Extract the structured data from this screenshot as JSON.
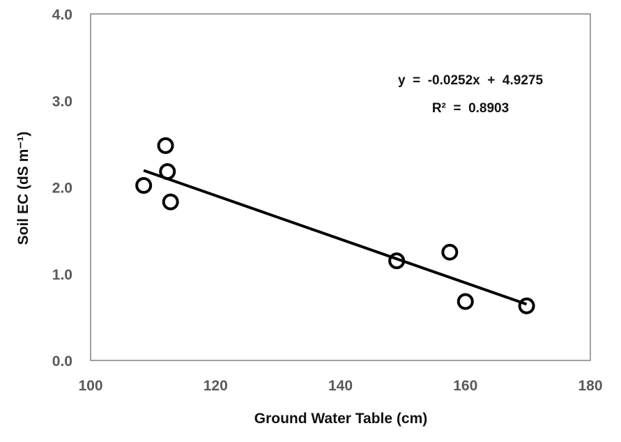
{
  "chart_data": {
    "type": "scatter",
    "title": "",
    "xlabel": "Ground Water Table (cm)",
    "ylabel": "Soil EC (dS m⁻¹)",
    "xlim": [
      100,
      180
    ],
    "ylim": [
      0.0,
      4.0
    ],
    "xticks": [
      "100",
      "120",
      "140",
      "160",
      "180"
    ],
    "yticks": [
      "0.0",
      "1.0",
      "2.0",
      "3.0",
      "4.0"
    ],
    "grid": false,
    "legend": "none",
    "series": [
      {
        "marker": "open-circle",
        "color": "#000000",
        "points": [
          {
            "x": 108.5,
            "y": 2.02
          },
          {
            "x": 112.0,
            "y": 2.48
          },
          {
            "x": 112.3,
            "y": 2.18
          },
          {
            "x": 112.8,
            "y": 1.83
          },
          {
            "x": 149.0,
            "y": 1.15
          },
          {
            "x": 157.5,
            "y": 1.25
          },
          {
            "x": 160.0,
            "y": 0.68
          },
          {
            "x": 169.8,
            "y": 0.63
          }
        ]
      }
    ],
    "trendline": {
      "slope": -0.0252,
      "intercept": 4.9275,
      "x_range": [
        108.5,
        169.8
      ],
      "color": "#000000"
    },
    "annotations": {
      "equation": "y  =  -0.0252x  +  4.9275",
      "r_squared": "R²  =  0.8903"
    }
  }
}
